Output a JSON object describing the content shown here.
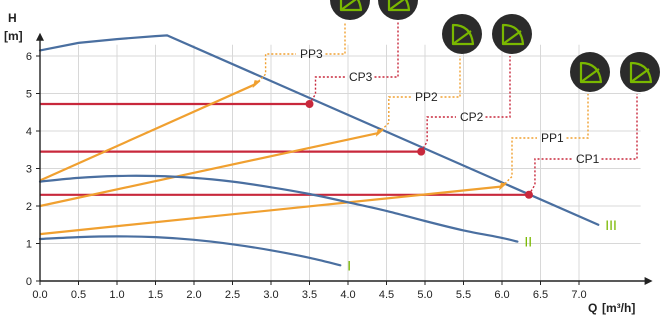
{
  "chart_data": {
    "type": "line",
    "title": "",
    "xlabel": "Q [m³/h]",
    "ylabel": "H [m]",
    "xlabel_parts": {
      "name": "Q",
      "unit": "[m³/h]"
    },
    "ylabel_parts": {
      "name": "H",
      "unit": "[m]"
    },
    "xlim": [
      0,
      7.8
    ],
    "ylim": [
      0,
      6.3
    ],
    "xticks": [
      "0.0",
      "0.5",
      "1.0",
      "1.5",
      "2.0",
      "2.5",
      "3.0",
      "3.5",
      "4.0",
      "4.5",
      "5.0",
      "5.5",
      "6.0",
      "6.5",
      "7.0"
    ],
    "yticks": [
      "0",
      "1",
      "2",
      "3",
      "4",
      "5",
      "6"
    ],
    "grid": true,
    "colors": {
      "curve": "#4a6fa0",
      "proportional": "#f0a030",
      "constant": "#c8283c",
      "roman": "#7ab800",
      "badge": "#2b2b2b",
      "badge_icon": "#7ab800"
    },
    "speed_curves": [
      {
        "label": "I",
        "x": [
          0,
          0.5,
          1.0,
          1.5,
          2.0,
          2.5,
          3.0,
          3.5,
          3.9
        ],
        "y": [
          1.12,
          1.17,
          1.19,
          1.17,
          1.1,
          0.98,
          0.82,
          0.62,
          0.42
        ]
      },
      {
        "label": "II",
        "x": [
          0,
          0.5,
          1.0,
          1.5,
          2.0,
          2.5,
          3.0,
          3.5,
          4.0,
          4.5,
          5.0,
          5.5,
          6.0,
          6.2
        ],
        "y": [
          2.65,
          2.75,
          2.8,
          2.8,
          2.75,
          2.65,
          2.5,
          2.32,
          2.1,
          1.87,
          1.6,
          1.35,
          1.15,
          1.05
        ]
      },
      {
        "label": "III",
        "x": [
          0,
          0.5,
          1.0,
          1.5,
          1.65,
          7.25
        ],
        "y": [
          6.15,
          6.35,
          6.45,
          6.53,
          6.55,
          1.5
        ]
      }
    ],
    "proportional_curves": [
      {
        "label": "PP1",
        "x": [
          0,
          6.0
        ],
        "y": [
          1.25,
          2.52
        ]
      },
      {
        "label": "PP2",
        "x": [
          0,
          4.4
        ],
        "y": [
          2.0,
          3.95
        ]
      },
      {
        "label": "PP3",
        "x": [
          0,
          2.8
        ],
        "y": [
          2.68,
          5.25
        ]
      }
    ],
    "constant_curves": [
      {
        "label": "CP1",
        "x": [
          0,
          6.35
        ],
        "y": [
          2.3,
          2.3
        ]
      },
      {
        "label": "CP2",
        "x": [
          0,
          4.95
        ],
        "y": [
          3.45,
          3.45
        ]
      },
      {
        "label": "CP3",
        "x": [
          0,
          3.5
        ],
        "y": [
          4.72,
          4.72
        ]
      }
    ],
    "annotations": [
      {
        "text": "PP3",
        "point": [
          2.8,
          5.25
        ],
        "badge": "left"
      },
      {
        "text": "CP3",
        "point": [
          3.5,
          4.72
        ],
        "badge": "right"
      },
      {
        "text": "PP2",
        "point": [
          4.4,
          3.95
        ],
        "badge": "left"
      },
      {
        "text": "CP2",
        "point": [
          4.95,
          3.45
        ],
        "badge": "right"
      },
      {
        "text": "PP1",
        "point": [
          6.0,
          2.52
        ],
        "badge": "left"
      },
      {
        "text": "CP1",
        "point": [
          6.35,
          2.3
        ],
        "badge": "right"
      }
    ],
    "badge_icons": [
      "mode-proportional-icon",
      "mode-constant-icon"
    ]
  }
}
